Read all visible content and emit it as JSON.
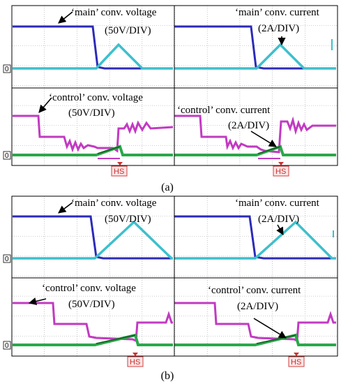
{
  "figure_parts": [
    {
      "caption": "(a)",
      "panels": [
        {
          "label": "‘main’ conv. voltage",
          "scale": "(50V/DIV)",
          "zero_marker": "0"
        },
        {
          "label": "‘main’ conv. current",
          "scale": "(2A/DIV)"
        },
        {
          "label": "‘control’ conv. voltage",
          "scale": "(50V/DIV)",
          "zero_marker": "0"
        },
        {
          "label": "‘control’ conv. current",
          "scale": "(2A/DIV)",
          "marker": "HS"
        }
      ],
      "hs_marker": "HS"
    },
    {
      "caption": "(b)",
      "panels": [
        {
          "label": "‘main’ conv. voltage",
          "scale": "(50V/DIV)",
          "zero_marker": "0"
        },
        {
          "label": "‘main’ conv. current",
          "scale": "(2A/DIV)"
        },
        {
          "label": "‘control’ conv. voltage",
          "scale": "(50V/DIV)",
          "zero_marker": "0"
        },
        {
          "label": "‘control’ conv. current",
          "scale": "(2A/DIV)",
          "marker": "HS"
        }
      ],
      "hs_marker": "HS"
    }
  ],
  "chart_data": {
    "type": "line",
    "grid": true,
    "colors": {
      "main_voltage": "#2b2bb8",
      "main_current": "#3cc0cc",
      "control_voltage": "#c23ac2",
      "control_current": "#2aa84a",
      "control_current_dark": "#145a1e",
      "marker": "#c83232"
    },
    "x_divisions": 10,
    "y_divisions": 8
  }
}
